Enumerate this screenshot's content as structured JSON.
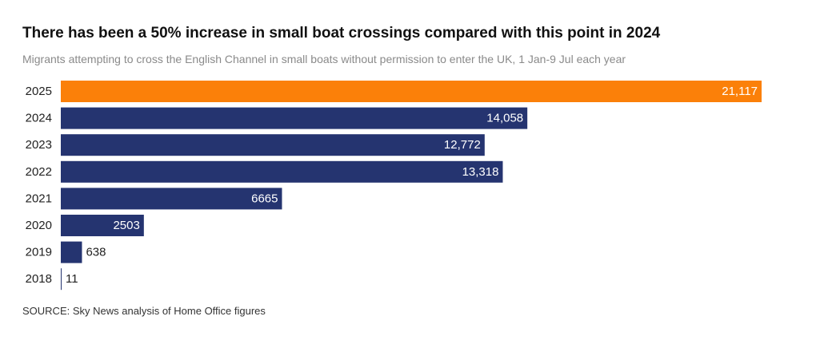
{
  "header": {
    "title": "There has been a 50% increase in small boat crossings compared with this point in 2024",
    "subtitle": "Migrants attempting to cross the English Channel in small boats without permission to enter the UK, 1 Jan-9 Jul each year"
  },
  "footer": {
    "source": "SOURCE: Sky News analysis of Home Office figures"
  },
  "colors": {
    "highlight": "#fb8009",
    "default": "#253470"
  },
  "chart_data": {
    "type": "bar",
    "orientation": "horizontal",
    "title": "There has been a 50% increase in small boat crossings compared with this point in 2024",
    "subtitle": "Migrants attempting to cross the English Channel in small boats without permission to enter the UK, 1 Jan-9 Jul each year",
    "xlabel": "",
    "ylabel": "",
    "grid": false,
    "xlim": [
      0,
      21117
    ],
    "highlight_category": "2025",
    "categories": [
      "2025",
      "2024",
      "2023",
      "2022",
      "2021",
      "2020",
      "2019",
      "2018"
    ],
    "values": [
      21117,
      14058,
      12772,
      13318,
      6665,
      2503,
      638,
      11
    ],
    "data_labels": [
      "21,117",
      "14,058",
      "12,772",
      "13,318",
      "6665",
      "2503",
      "638",
      "11"
    ]
  }
}
